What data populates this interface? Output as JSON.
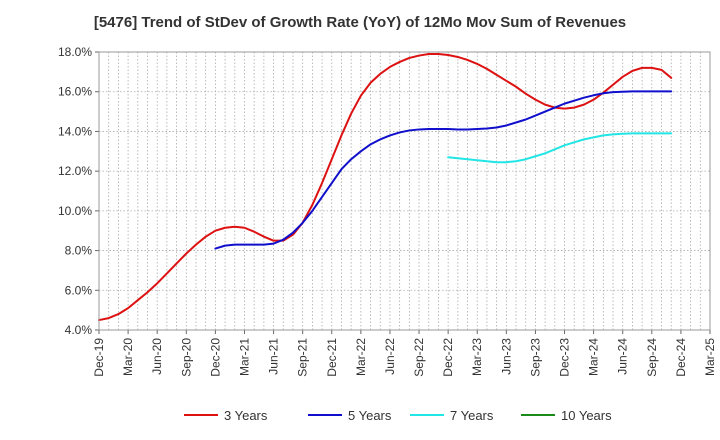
{
  "chart_data": {
    "type": "line",
    "title": "[5476]  Trend of StDev of Growth Rate (YoY) of 12Mo Mov Sum of Revenues",
    "xlabel": "",
    "ylabel": "",
    "ylim": [
      4.0,
      18.0
    ],
    "yticks": [
      4.0,
      6.0,
      8.0,
      10.0,
      12.0,
      14.0,
      16.0,
      18.0
    ],
    "ytick_labels": [
      "4.0%",
      "6.0%",
      "8.0%",
      "10.0%",
      "12.0%",
      "14.0%",
      "16.0%",
      "18.0%"
    ],
    "x_range": [
      "Dec-19",
      "Mar-25"
    ],
    "x_tick_labels": [
      "Dec-19",
      "Mar-20",
      "Jun-20",
      "Sep-20",
      "Dec-20",
      "Mar-21",
      "Jun-21",
      "Sep-21",
      "Dec-21",
      "Mar-22",
      "Jun-22",
      "Sep-22",
      "Dec-22",
      "Mar-23",
      "Jun-23",
      "Sep-23",
      "Dec-23",
      "Mar-24",
      "Jun-24",
      "Sep-24",
      "Dec-24",
      "Mar-25"
    ],
    "grid": true,
    "legend_position": "bottom",
    "series": [
      {
        "name": "3 Years",
        "color": "#dd1111",
        "points": [
          [
            "Dec-19",
            4.5
          ],
          [
            "Jan-20",
            4.6
          ],
          [
            "Feb-20",
            4.8
          ],
          [
            "Mar-20",
            5.1
          ],
          [
            "Apr-20",
            5.5
          ],
          [
            "May-20",
            5.9
          ],
          [
            "Jun-20",
            6.35
          ],
          [
            "Jul-20",
            6.85
          ],
          [
            "Aug-20",
            7.35
          ],
          [
            "Sep-20",
            7.85
          ],
          [
            "Oct-20",
            8.3
          ],
          [
            "Nov-20",
            8.7
          ],
          [
            "Dec-20",
            9.0
          ],
          [
            "Jan-21",
            9.15
          ],
          [
            "Feb-21",
            9.2
          ],
          [
            "Mar-21",
            9.15
          ],
          [
            "Apr-21",
            8.95
          ],
          [
            "May-21",
            8.7
          ],
          [
            "Jun-21",
            8.5
          ],
          [
            "Jul-21",
            8.5
          ],
          [
            "Aug-21",
            8.8
          ],
          [
            "Sep-21",
            9.4
          ],
          [
            "Oct-21",
            10.3
          ],
          [
            "Nov-21",
            11.4
          ],
          [
            "Dec-21",
            12.6
          ],
          [
            "Jan-22",
            13.8
          ],
          [
            "Feb-22",
            14.9
          ],
          [
            "Mar-22",
            15.8
          ],
          [
            "Apr-22",
            16.45
          ],
          [
            "May-22",
            16.9
          ],
          [
            "Jun-22",
            17.25
          ],
          [
            "Jul-22",
            17.5
          ],
          [
            "Aug-22",
            17.7
          ],
          [
            "Sep-22",
            17.82
          ],
          [
            "Oct-22",
            17.9
          ],
          [
            "Nov-22",
            17.9
          ],
          [
            "Dec-22",
            17.85
          ],
          [
            "Jan-23",
            17.75
          ],
          [
            "Feb-23",
            17.6
          ],
          [
            "Mar-23",
            17.4
          ],
          [
            "Apr-23",
            17.15
          ],
          [
            "May-23",
            16.85
          ],
          [
            "Jun-23",
            16.55
          ],
          [
            "Jul-23",
            16.25
          ],
          [
            "Aug-23",
            15.9
          ],
          [
            "Sep-23",
            15.6
          ],
          [
            "Oct-23",
            15.35
          ],
          [
            "Nov-23",
            15.2
          ],
          [
            "Dec-23",
            15.15
          ],
          [
            "Jan-24",
            15.2
          ],
          [
            "Feb-24",
            15.35
          ],
          [
            "Mar-24",
            15.6
          ],
          [
            "Apr-24",
            15.95
          ],
          [
            "May-24",
            16.35
          ],
          [
            "Jun-24",
            16.75
          ],
          [
            "Jul-24",
            17.05
          ],
          [
            "Aug-24",
            17.2
          ],
          [
            "Sep-24",
            17.2
          ],
          [
            "Oct-24",
            17.1
          ],
          [
            "Nov-24",
            16.7
          ]
        ]
      },
      {
        "name": "5 Years",
        "color": "#0f0fcc",
        "points": [
          [
            "Dec-20",
            8.1
          ],
          [
            "Jan-21",
            8.25
          ],
          [
            "Feb-21",
            8.3
          ],
          [
            "Mar-21",
            8.3
          ],
          [
            "Apr-21",
            8.3
          ],
          [
            "May-21",
            8.3
          ],
          [
            "Jun-21",
            8.35
          ],
          [
            "Jul-21",
            8.55
          ],
          [
            "Aug-21",
            8.9
          ],
          [
            "Sep-21",
            9.4
          ],
          [
            "Oct-21",
            10.0
          ],
          [
            "Nov-21",
            10.7
          ],
          [
            "Dec-21",
            11.4
          ],
          [
            "Jan-22",
            12.1
          ],
          [
            "Feb-22",
            12.6
          ],
          [
            "Mar-22",
            13.0
          ],
          [
            "Apr-22",
            13.35
          ],
          [
            "May-22",
            13.6
          ],
          [
            "Jun-22",
            13.8
          ],
          [
            "Jul-22",
            13.95
          ],
          [
            "Aug-22",
            14.05
          ],
          [
            "Sep-22",
            14.1
          ],
          [
            "Oct-22",
            14.12
          ],
          [
            "Nov-22",
            14.12
          ],
          [
            "Dec-22",
            14.12
          ],
          [
            "Jan-23",
            14.1
          ],
          [
            "Feb-23",
            14.1
          ],
          [
            "Mar-23",
            14.12
          ],
          [
            "Apr-23",
            14.15
          ],
          [
            "May-23",
            14.2
          ],
          [
            "Jun-23",
            14.3
          ],
          [
            "Jul-23",
            14.45
          ],
          [
            "Aug-23",
            14.6
          ],
          [
            "Sep-23",
            14.8
          ],
          [
            "Oct-23",
            15.0
          ],
          [
            "Nov-23",
            15.2
          ],
          [
            "Dec-23",
            15.4
          ],
          [
            "Jan-24",
            15.55
          ],
          [
            "Feb-24",
            15.7
          ],
          [
            "Mar-24",
            15.82
          ],
          [
            "Apr-24",
            15.92
          ],
          [
            "May-24",
            15.98
          ],
          [
            "Jun-24",
            16.0
          ],
          [
            "Jul-24",
            16.02
          ],
          [
            "Aug-24",
            16.02
          ],
          [
            "Sep-24",
            16.02
          ],
          [
            "Oct-24",
            16.02
          ],
          [
            "Nov-24",
            16.02
          ]
        ]
      },
      {
        "name": "7 Years",
        "color": "#22e5e5",
        "points": [
          [
            "Dec-22",
            12.7
          ],
          [
            "Jan-23",
            12.65
          ],
          [
            "Feb-23",
            12.6
          ],
          [
            "Mar-23",
            12.55
          ],
          [
            "Apr-23",
            12.5
          ],
          [
            "May-23",
            12.45
          ],
          [
            "Jun-23",
            12.45
          ],
          [
            "Jul-23",
            12.5
          ],
          [
            "Aug-23",
            12.6
          ],
          [
            "Sep-23",
            12.75
          ],
          [
            "Oct-23",
            12.9
          ],
          [
            "Nov-23",
            13.1
          ],
          [
            "Dec-23",
            13.3
          ],
          [
            "Jan-24",
            13.45
          ],
          [
            "Feb-24",
            13.6
          ],
          [
            "Mar-24",
            13.7
          ],
          [
            "Apr-24",
            13.8
          ],
          [
            "May-24",
            13.85
          ],
          [
            "Jun-24",
            13.88
          ],
          [
            "Jul-24",
            13.9
          ],
          [
            "Aug-24",
            13.9
          ],
          [
            "Sep-24",
            13.9
          ],
          [
            "Oct-24",
            13.9
          ],
          [
            "Nov-24",
            13.9
          ]
        ]
      },
      {
        "name": "10 Years",
        "color": "#1a8a1a",
        "points": []
      }
    ]
  }
}
